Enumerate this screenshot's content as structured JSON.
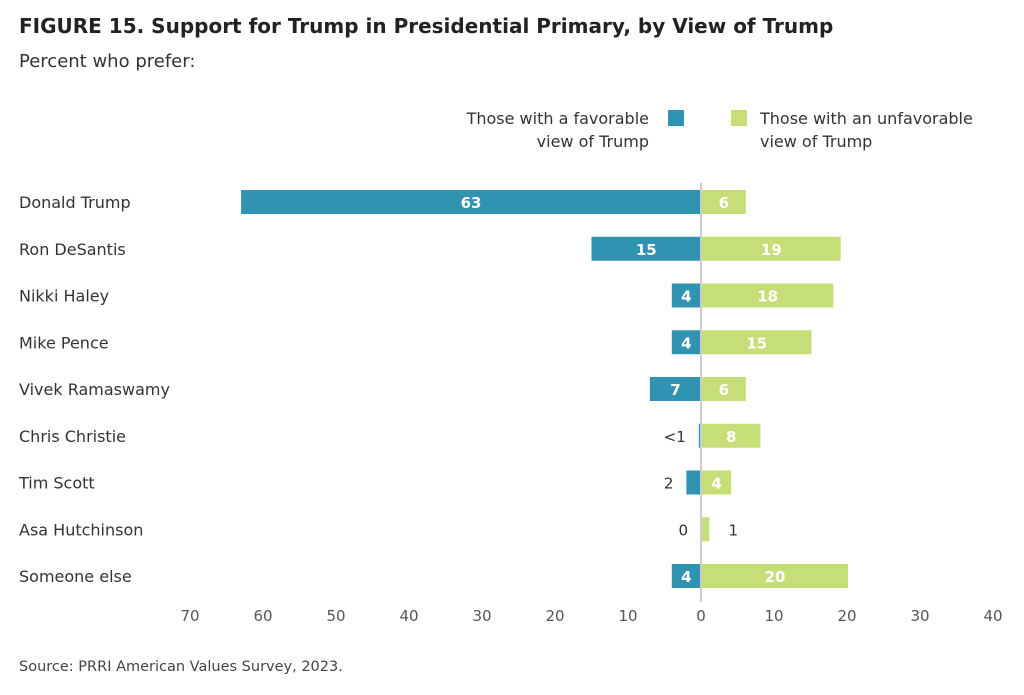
{
  "title": "FIGURE 15.  Support for Trump in Presidential Primary, by View of Trump",
  "subtitle": "Percent who prefer:",
  "source": "Source: PRRI American Values Survey, 2023.",
  "colors": {
    "favorable": "#3093b1",
    "unfavorable": "#c5de78",
    "axis": "#cccccc",
    "label_dark": "#333333",
    "label_light": "#ffffff"
  },
  "chart_data": {
    "type": "bar",
    "orientation": "diverging-horizontal",
    "categories": [
      "Donald Trump",
      "Ron DeSantis",
      "Nikki Haley",
      "Mike Pence",
      "Vivek Ramaswamy",
      "Chris Christie",
      "Tim Scott",
      "Asa Hutchinson",
      "Someone else"
    ],
    "series": [
      {
        "name": "Those with a favorable view of Trump",
        "legend_lines": [
          "Those with a favorable",
          "view of Trump"
        ],
        "direction": "left",
        "values": [
          63,
          15,
          4,
          4,
          7,
          0.3,
          2,
          0,
          4
        ],
        "labels": [
          "63",
          "15",
          "4",
          "4",
          "7",
          "<1",
          "2",
          "0",
          "4"
        ]
      },
      {
        "name": "Those with an unfavorable view of Trump",
        "legend_lines": [
          "Those with an unfavorable",
          "view of Trump"
        ],
        "direction": "right",
        "values": [
          6,
          19,
          18,
          15,
          6,
          8,
          4,
          1,
          20
        ],
        "labels": [
          "6",
          "19",
          "18",
          "15",
          "6",
          "8",
          "4",
          "1",
          "20"
        ]
      }
    ],
    "xticks": [
      "70",
      "60",
      "50",
      "40",
      "30",
      "20",
      "10",
      "0",
      "10",
      "20",
      "30",
      "40"
    ],
    "xlim": [
      -70,
      40
    ],
    "legend_position": "top-right",
    "grid": false
  }
}
